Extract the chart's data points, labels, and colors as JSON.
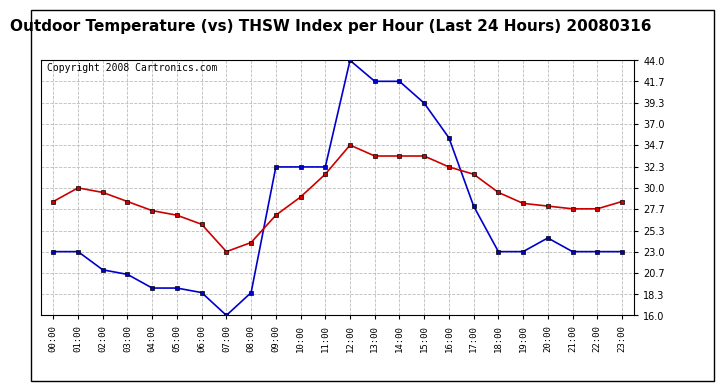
{
  "title": "Outdoor Temperature (vs) THSW Index per Hour (Last 24 Hours) 20080316",
  "copyright": "Copyright 2008 Cartronics.com",
  "hours": [
    "00:00",
    "01:00",
    "02:00",
    "03:00",
    "04:00",
    "05:00",
    "06:00",
    "07:00",
    "08:00",
    "09:00",
    "10:00",
    "11:00",
    "12:00",
    "13:00",
    "14:00",
    "15:00",
    "16:00",
    "17:00",
    "18:00",
    "19:00",
    "20:00",
    "21:00",
    "22:00",
    "23:00"
  ],
  "thsw": [
    23.0,
    23.0,
    21.0,
    20.5,
    19.0,
    19.0,
    18.5,
    16.0,
    18.5,
    32.3,
    32.3,
    32.3,
    44.0,
    41.7,
    41.7,
    39.3,
    35.5,
    28.0,
    23.0,
    23.0,
    24.5,
    23.0,
    23.0,
    23.0
  ],
  "temp": [
    28.5,
    30.0,
    29.5,
    28.5,
    27.5,
    27.0,
    26.0,
    23.0,
    24.0,
    27.0,
    29.0,
    31.5,
    34.7,
    33.5,
    33.5,
    33.5,
    32.3,
    31.5,
    29.5,
    28.3,
    28.0,
    27.7,
    27.7,
    28.5
  ],
  "thsw_color": "#0000cc",
  "temp_color": "#cc0000",
  "bg_color": "#ffffff",
  "grid_color": "#bbbbbb",
  "ylim": [
    16.0,
    44.0
  ],
  "yticks": [
    16.0,
    18.3,
    20.7,
    23.0,
    25.3,
    27.7,
    30.0,
    32.3,
    34.7,
    37.0,
    39.3,
    41.7,
    44.0
  ],
  "title_fontsize": 11,
  "copyright_fontsize": 7,
  "marker": "s",
  "marker_size": 3,
  "line_width": 1.2
}
